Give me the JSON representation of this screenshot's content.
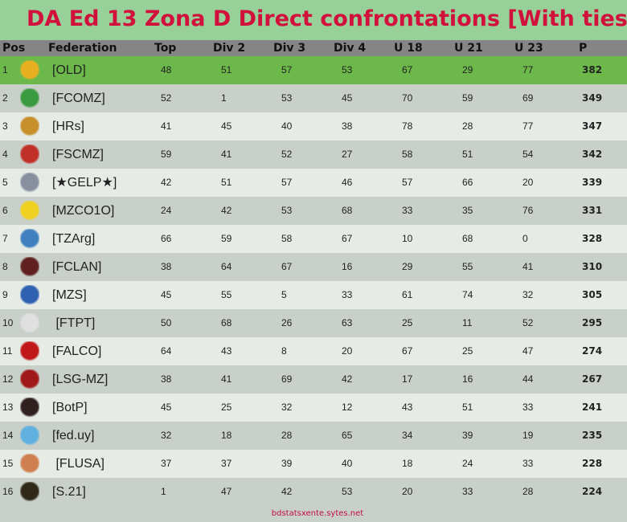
{
  "title": "DA Ed 13 Zona D Direct confrontations [With ties",
  "columns": [
    "Pos",
    "Federation",
    "Top",
    "Div 2",
    "Div 3",
    "Div 4",
    "U 18",
    "U 21",
    "U 23",
    "P"
  ],
  "rows": [
    {
      "pos": "1",
      "federation": "[OLD]",
      "icon": "lion-crest-icon",
      "color": "#e8b020",
      "values": [
        "48",
        "51",
        "57",
        "53",
        "67",
        "29",
        "77"
      ],
      "p": "382"
    },
    {
      "pos": "2",
      "federation": "[FCOMZ]",
      "icon": "map-crest-icon",
      "color": "#3a9a40",
      "values": [
        "52",
        "1",
        "53",
        "45",
        "70",
        "59",
        "69"
      ],
      "p": "349"
    },
    {
      "pos": "3",
      "federation": "[HRs]",
      "icon": "lion-head-icon",
      "color": "#c8902a",
      "values": [
        "41",
        "45",
        "40",
        "38",
        "78",
        "28",
        "77"
      ],
      "p": "347"
    },
    {
      "pos": "4",
      "federation": "[FSCMZ]",
      "icon": "shield-crest-icon",
      "color": "#c03028",
      "values": [
        "59",
        "41",
        "52",
        "27",
        "58",
        "51",
        "54"
      ],
      "p": "342"
    },
    {
      "pos": "5",
      "federation": "[★GELP★]",
      "icon": "grey-shield-icon",
      "color": "#8890a0",
      "values": [
        "42",
        "51",
        "57",
        "46",
        "57",
        "66",
        "20"
      ],
      "p": "339"
    },
    {
      "pos": "6",
      "federation": "[MZCO1O]",
      "icon": "colombia-flag-icon",
      "color": "#f0d020",
      "values": [
        "24",
        "42",
        "53",
        "68",
        "33",
        "35",
        "76"
      ],
      "p": "331"
    },
    {
      "pos": "7",
      "federation": "[TZArg]",
      "icon": "text-logo-icon",
      "color": "#4080c0",
      "values": [
        "66",
        "59",
        "58",
        "67",
        "10",
        "68",
        "0"
      ],
      "p": "328"
    },
    {
      "pos": "8",
      "federation": "[FCLAN]",
      "icon": "samurai-icon",
      "color": "#602020",
      "values": [
        "38",
        "64",
        "67",
        "16",
        "29",
        "55",
        "41"
      ],
      "p": "310"
    },
    {
      "pos": "9",
      "federation": "[MZS]",
      "icon": "blue-yellow-shield-icon",
      "color": "#3060b0",
      "values": [
        "45",
        "55",
        "5",
        "33",
        "61",
        "74",
        "32"
      ],
      "p": "305"
    },
    {
      "pos": "10",
      "federation": " [FTPT]",
      "icon": "corinthians-crest-icon",
      "color": "#e0e0e0",
      "values": [
        "50",
        "68",
        "26",
        "63",
        "25",
        "11",
        "52"
      ],
      "p": "295"
    },
    {
      "pos": "11",
      "federation": "[FALCO]",
      "icon": "red-falcon-icon",
      "color": "#c01818",
      "values": [
        "64",
        "43",
        "8",
        "20",
        "67",
        "25",
        "47"
      ],
      "p": "274"
    },
    {
      "pos": "12",
      "federation": "[LSG-MZ]",
      "icon": "red-black-shield-icon",
      "color": "#a01818",
      "values": [
        "38",
        "41",
        "69",
        "42",
        "17",
        "16",
        "44"
      ],
      "p": "267"
    },
    {
      "pos": "13",
      "federation": "[BotP]",
      "icon": "bird-mascot-icon",
      "color": "#302020",
      "values": [
        "45",
        "25",
        "32",
        "12",
        "43",
        "51",
        "33"
      ],
      "p": "241"
    },
    {
      "pos": "14",
      "federation": "[fed.uy]",
      "icon": "ball-logo-icon",
      "color": "#60b0e0",
      "values": [
        "32",
        "18",
        "28",
        "65",
        "34",
        "39",
        "19"
      ],
      "p": "235"
    },
    {
      "pos": "15",
      "federation": " [FLUSA]",
      "icon": "ball-crest-icon",
      "color": "#d08050",
      "values": [
        "37",
        "37",
        "39",
        "40",
        "18",
        "24",
        "33"
      ],
      "p": "228"
    },
    {
      "pos": "16",
      "federation": "[S.21]",
      "icon": "black-gold-21-icon",
      "color": "#302818",
      "values": [
        "1",
        "47",
        "42",
        "53",
        "20",
        "33",
        "28"
      ],
      "p": "224"
    }
  ],
  "footer": "bdstatsxente.sytes.net"
}
